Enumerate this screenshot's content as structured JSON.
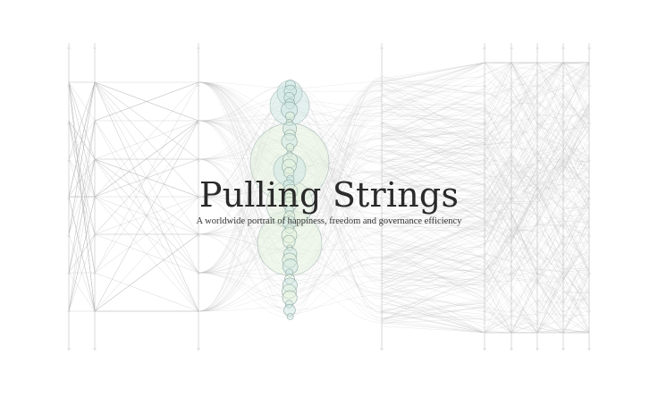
{
  "title": "Pulling Strings",
  "subtitle": "A worldwide portrait of happiness, freedom and governance efficiency",
  "colors": {
    "background": "#ffffff",
    "axis": "#cfcfcf",
    "strings_left": "#b8b8b8",
    "strings_right": "#c4c4c4",
    "circle_fill_teal": "#cfe8e3",
    "circle_fill_green": "#e4f1de",
    "circle_stroke": "#8fa9a4",
    "text": "#2a2a2a"
  }
}
